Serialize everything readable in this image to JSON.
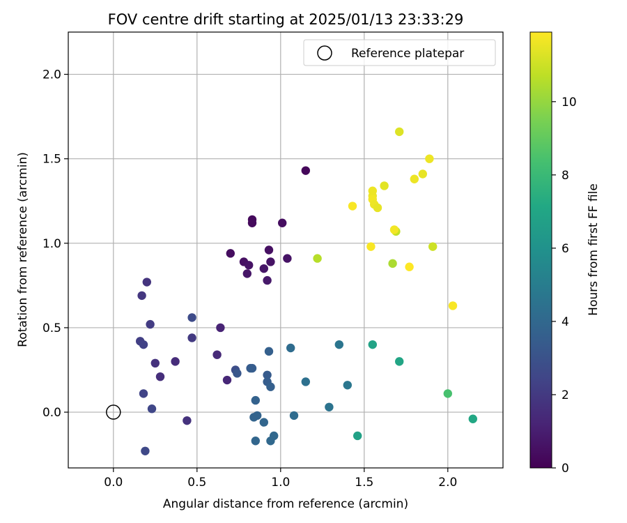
{
  "chart_data": {
    "type": "scatter",
    "title": "FOV centre drift starting at 2025/01/13 23:33:29",
    "xlabel": "Angular distance from reference (arcmin)",
    "ylabel": "Rotation from reference (arcmin)",
    "xlim": [
      -0.27,
      2.33
    ],
    "ylim": [
      -0.33,
      2.25
    ],
    "xticks": [
      0.0,
      0.5,
      1.0,
      1.5,
      2.0
    ],
    "xtick_labels": [
      "0.0",
      "0.5",
      "1.0",
      "1.5",
      "2.0"
    ],
    "yticks": [
      0.0,
      0.5,
      1.0,
      1.5,
      2.0
    ],
    "ytick_labels": [
      "0.0",
      "0.5",
      "1.0",
      "1.5",
      "2.0"
    ],
    "grid": true,
    "legend": {
      "position": "top-right",
      "label": "Reference platepar"
    },
    "reference_point": {
      "x": 0.0,
      "y": 0.0
    },
    "colorbar": {
      "label": "Hours from first FF file",
      "colormap": "viridis",
      "range": [
        0,
        11.9
      ],
      "ticks": [
        0,
        2,
        4,
        6,
        8,
        10
      ],
      "tick_labels": [
        "0",
        "2",
        "4",
        "6",
        "8",
        "10"
      ]
    },
    "points": [
      {
        "x": 1.15,
        "y": 1.43,
        "hours": 0.2
      },
      {
        "x": 0.83,
        "y": 1.14,
        "hours": 0.3
      },
      {
        "x": 0.83,
        "y": 1.12,
        "hours": 0.3
      },
      {
        "x": 1.01,
        "y": 1.12,
        "hours": 0.4
      },
      {
        "x": 0.7,
        "y": 0.94,
        "hours": 0.4
      },
      {
        "x": 0.93,
        "y": 0.96,
        "hours": 0.5
      },
      {
        "x": 0.78,
        "y": 0.89,
        "hours": 0.5
      },
      {
        "x": 0.81,
        "y": 0.87,
        "hours": 0.6
      },
      {
        "x": 0.94,
        "y": 0.89,
        "hours": 0.6
      },
      {
        "x": 1.04,
        "y": 0.91,
        "hours": 0.6
      },
      {
        "x": 0.9,
        "y": 0.85,
        "hours": 0.7
      },
      {
        "x": 0.8,
        "y": 0.82,
        "hours": 0.7
      },
      {
        "x": 0.92,
        "y": 0.78,
        "hours": 0.8
      },
      {
        "x": 0.64,
        "y": 0.5,
        "hours": 1.2
      },
      {
        "x": 0.68,
        "y": 0.19,
        "hours": 1.3
      },
      {
        "x": 0.62,
        "y": 0.34,
        "hours": 1.4
      },
      {
        "x": 0.37,
        "y": 0.3,
        "hours": 1.5
      },
      {
        "x": 0.28,
        "y": 0.21,
        "hours": 1.6
      },
      {
        "x": 0.25,
        "y": 0.29,
        "hours": 1.7
      },
      {
        "x": 0.2,
        "y": 0.77,
        "hours": 1.8
      },
      {
        "x": 0.17,
        "y": 0.69,
        "hours": 1.9
      },
      {
        "x": 0.44,
        "y": -0.05,
        "hours": 1.7
      },
      {
        "x": 0.47,
        "y": 0.44,
        "hours": 2.0
      },
      {
        "x": 0.22,
        "y": 0.52,
        "hours": 2.1
      },
      {
        "x": 0.16,
        "y": 0.42,
        "hours": 2.2
      },
      {
        "x": 0.18,
        "y": 0.4,
        "hours": 2.3
      },
      {
        "x": 0.18,
        "y": 0.11,
        "hours": 2.4
      },
      {
        "x": 0.23,
        "y": 0.02,
        "hours": 2.5
      },
      {
        "x": 0.19,
        "y": -0.23,
        "hours": 2.6
      },
      {
        "x": 0.47,
        "y": 0.56,
        "hours": 2.7
      },
      {
        "x": 0.73,
        "y": 0.25,
        "hours": 2.8
      },
      {
        "x": 0.74,
        "y": 0.23,
        "hours": 3.2
      },
      {
        "x": 0.82,
        "y": 0.26,
        "hours": 3.4
      },
      {
        "x": 0.83,
        "y": 0.26,
        "hours": 3.5
      },
      {
        "x": 0.92,
        "y": 0.22,
        "hours": 3.4
      },
      {
        "x": 0.92,
        "y": 0.18,
        "hours": 3.5
      },
      {
        "x": 0.94,
        "y": 0.15,
        "hours": 3.6
      },
      {
        "x": 0.93,
        "y": 0.36,
        "hours": 3.6
      },
      {
        "x": 0.85,
        "y": 0.07,
        "hours": 3.7
      },
      {
        "x": 0.84,
        "y": -0.03,
        "hours": 3.8
      },
      {
        "x": 0.86,
        "y": -0.02,
        "hours": 3.8
      },
      {
        "x": 0.9,
        "y": -0.06,
        "hours": 3.9
      },
      {
        "x": 0.85,
        "y": -0.17,
        "hours": 3.9
      },
      {
        "x": 0.94,
        "y": -0.17,
        "hours": 4.0
      },
      {
        "x": 0.96,
        "y": -0.14,
        "hours": 4.0
      },
      {
        "x": 1.06,
        "y": 0.38,
        "hours": 4.2
      },
      {
        "x": 1.08,
        "y": -0.02,
        "hours": 4.2
      },
      {
        "x": 1.15,
        "y": 0.18,
        "hours": 4.4
      },
      {
        "x": 1.29,
        "y": 0.03,
        "hours": 4.5
      },
      {
        "x": 1.35,
        "y": 0.4,
        "hours": 4.6
      },
      {
        "x": 1.4,
        "y": 0.16,
        "hours": 4.7
      },
      {
        "x": 1.46,
        "y": -0.14,
        "hours": 6.8
      },
      {
        "x": 1.55,
        "y": 0.4,
        "hours": 6.9
      },
      {
        "x": 1.71,
        "y": 0.3,
        "hours": 7.0
      },
      {
        "x": 2.15,
        "y": -0.04,
        "hours": 7.1
      },
      {
        "x": 2.0,
        "y": 0.11,
        "hours": 8.4
      },
      {
        "x": 1.22,
        "y": 0.91,
        "hours": 10.6
      },
      {
        "x": 1.67,
        "y": 0.88,
        "hours": 10.4
      },
      {
        "x": 1.69,
        "y": 1.07,
        "hours": 10.8
      },
      {
        "x": 1.91,
        "y": 0.98,
        "hours": 11.0
      },
      {
        "x": 1.43,
        "y": 1.22,
        "hours": 11.8
      },
      {
        "x": 1.54,
        "y": 0.98,
        "hours": 11.8
      },
      {
        "x": 1.55,
        "y": 1.31,
        "hours": 11.6
      },
      {
        "x": 1.55,
        "y": 1.28,
        "hours": 11.6
      },
      {
        "x": 1.55,
        "y": 1.26,
        "hours": 11.7
      },
      {
        "x": 1.56,
        "y": 1.23,
        "hours": 11.6
      },
      {
        "x": 1.58,
        "y": 1.21,
        "hours": 11.5
      },
      {
        "x": 1.62,
        "y": 1.34,
        "hours": 11.4
      },
      {
        "x": 1.68,
        "y": 1.08,
        "hours": 11.7
      },
      {
        "x": 1.71,
        "y": 1.66,
        "hours": 11.3
      },
      {
        "x": 1.77,
        "y": 0.86,
        "hours": 11.9
      },
      {
        "x": 1.8,
        "y": 1.38,
        "hours": 11.6
      },
      {
        "x": 1.85,
        "y": 1.41,
        "hours": 11.5
      },
      {
        "x": 1.89,
        "y": 1.5,
        "hours": 11.6
      },
      {
        "x": 2.03,
        "y": 0.63,
        "hours": 11.8
      }
    ]
  }
}
